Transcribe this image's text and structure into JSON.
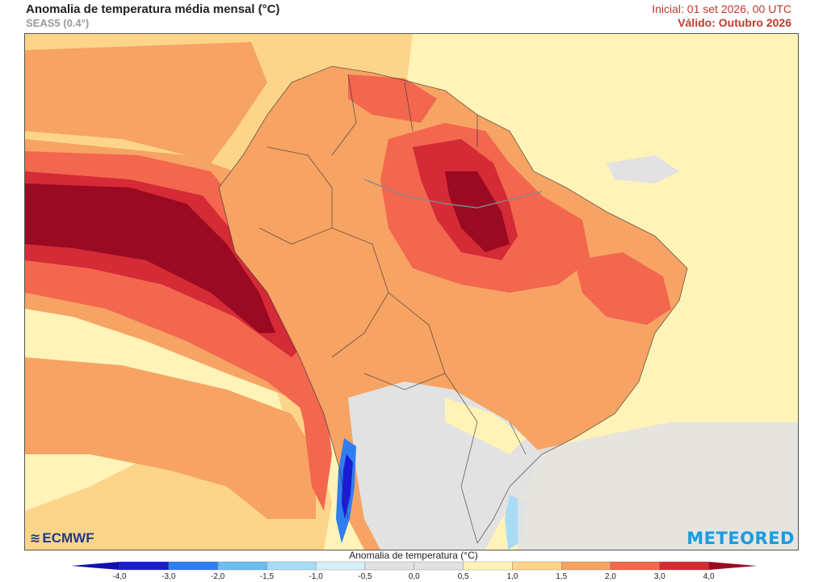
{
  "header": {
    "title": "Anomalia de temperatura média mensal (°C)",
    "model": "SEAS5 (0.4°)",
    "initial": "Inicial: 01 set 2026, 00 UTC",
    "valid": "Válido: Outubro 2026"
  },
  "logos": {
    "ecmwf": "ECMWF",
    "meteored": "METEORED"
  },
  "colorbar": {
    "title": "Anomalia de temperatura (°C)",
    "ticks": [
      "-4,0",
      "-3,0",
      "-2,0",
      "-1,5",
      "-1,0",
      "-0,5",
      "0,0",
      "0,5",
      "1,0",
      "1,5",
      "2,0",
      "3,0",
      "4,0"
    ],
    "colors": [
      "#1b1bd6",
      "#2f7ef0",
      "#6cbdf2",
      "#a8dcf5",
      "#d8eef8",
      "#e2e2e2",
      "#e2e2e2",
      "#fff3b8",
      "#fcd58a",
      "#f7a364",
      "#f2674e",
      "#d42b36"
    ],
    "arrow_low": "#1010b0",
    "arrow_high": "#9a0a22"
  }
}
